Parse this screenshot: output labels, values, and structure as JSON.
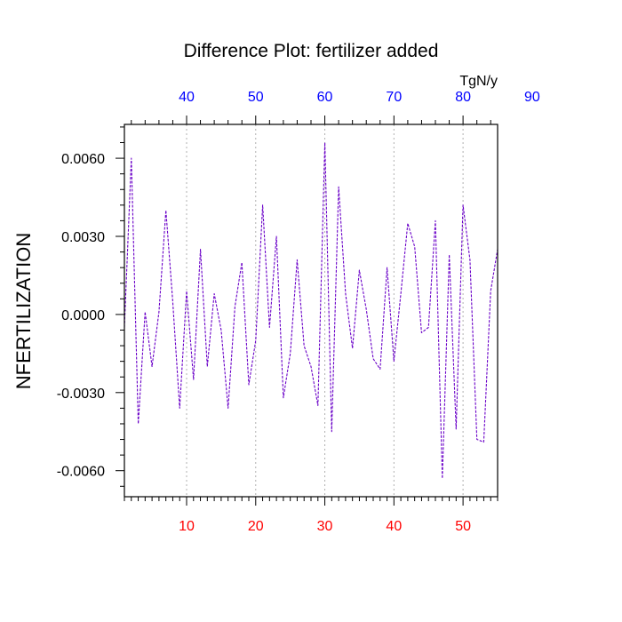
{
  "chart_data": {
    "type": "line",
    "title": "Difference Plot: fertilizer added",
    "ylabel": "NFERTILIZATION",
    "top_axis_units": "TgN/y",
    "xlim": [
      1,
      55
    ],
    "ylim": [
      -0.007,
      0.0073
    ],
    "grid": "vertical-dashed",
    "bottom_ticks": [
      "10",
      "20",
      "30",
      "40",
      "50"
    ],
    "bottom_tick_values": [
      10,
      20,
      30,
      40,
      50
    ],
    "top_ticks": [
      "40",
      "50",
      "60",
      "70",
      "80",
      "90"
    ],
    "top_tick_values": [
      40,
      50,
      60,
      70,
      80,
      90
    ],
    "y_ticks": [
      "-0.0060",
      "-0.0030",
      "0.0000",
      "0.0030",
      "0.0060"
    ],
    "y_tick_values": [
      -0.006,
      -0.003,
      0.0,
      0.003,
      0.006
    ],
    "colors": {
      "line": "#6a00c8",
      "bottom_ticks": "#ff0000",
      "top_ticks": "#0000ff",
      "grid": "#b0b0b0",
      "axes": "#000000"
    },
    "series": [
      {
        "x": [
          1,
          2,
          3,
          4,
          5,
          6,
          7,
          8,
          9,
          10,
          11,
          12,
          13,
          14,
          15,
          16,
          17,
          18,
          19,
          20,
          21,
          22,
          23,
          24,
          25,
          26,
          27,
          28,
          29,
          30,
          31,
          32,
          33,
          34,
          35,
          36,
          37,
          38,
          39,
          40,
          41,
          42,
          43,
          44,
          45,
          46,
          47,
          48,
          49,
          50,
          51,
          52,
          53,
          54,
          55
        ],
        "y": [
          -0.0005,
          0.006,
          -0.0042,
          0.0001,
          -0.002,
          0.0001,
          0.004,
          0.0005,
          -0.0036,
          0.0009,
          -0.0025,
          0.0025,
          -0.002,
          0.0008,
          -0.0006,
          -0.0036,
          0.0003,
          0.002,
          -0.0027,
          -0.001,
          0.0042,
          -0.0005,
          0.003,
          -0.0032,
          -0.0015,
          0.0021,
          -0.0012,
          -0.002,
          -0.0035,
          0.0066,
          -0.0045,
          0.0049,
          0.0008,
          -0.0013,
          0.0017,
          0.0002,
          -0.0017,
          -0.0021,
          0.0018,
          -0.0018,
          0.0008,
          0.0035,
          0.0026,
          -0.0007,
          -0.0005,
          0.0036,
          -0.0063,
          0.0023,
          -0.0044,
          0.0042,
          0.0021,
          -0.0048,
          -0.0049,
          0.0009,
          0.0025
        ]
      }
    ]
  }
}
